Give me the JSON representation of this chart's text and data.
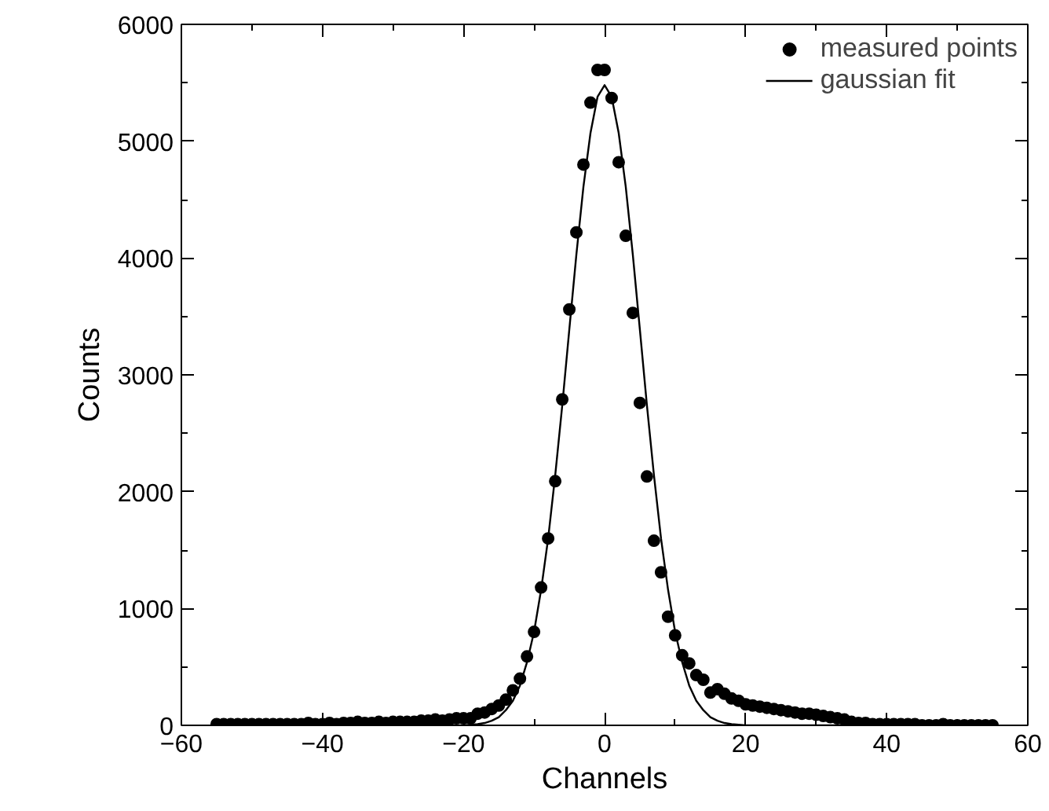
{
  "chart_data": {
    "type": "scatter",
    "xlabel": "Channels",
    "ylabel": "Counts",
    "xlim": [
      -60,
      60
    ],
    "ylim": [
      0,
      6000
    ],
    "xticks": [
      {
        "value": -60,
        "label": "−60"
      },
      {
        "value": -40,
        "label": "−40"
      },
      {
        "value": -20,
        "label": "−20"
      },
      0,
      20,
      40,
      60
    ],
    "yticks": [
      0,
      1000,
      2000,
      3000,
      4000,
      5000,
      6000
    ],
    "grid": false,
    "legend": "top right",
    "series": [
      {
        "name": "measured points",
        "marker": "circle",
        "color": "#000000",
        "x": [
          -55,
          -54,
          -53,
          -52,
          -51,
          -50,
          -49,
          -48,
          -47,
          -46,
          -45,
          -44,
          -43,
          -42,
          -41,
          -40,
          -39,
          -38,
          -37,
          -36,
          -35,
          -34,
          -33,
          -32,
          -31,
          -30,
          -29,
          -28,
          -27,
          -26,
          -25,
          -24,
          -23,
          -22,
          -21,
          -20,
          -19,
          -18,
          -17,
          -16,
          -15,
          -14,
          -13,
          -12,
          -11,
          -10,
          -9,
          -8,
          -7,
          -6,
          -5,
          -4,
          -3,
          -2,
          -1,
          0,
          1,
          2,
          3,
          4,
          5,
          6,
          7,
          8,
          9,
          10,
          11,
          12,
          13,
          14,
          15,
          16,
          17,
          18,
          19,
          20,
          21,
          22,
          23,
          24,
          25,
          26,
          27,
          28,
          29,
          30,
          31,
          32,
          33,
          34,
          35,
          36,
          37,
          38,
          39,
          40,
          41,
          42,
          43,
          44,
          45,
          46,
          47,
          48,
          49,
          50,
          51,
          52,
          53,
          54,
          55
        ],
        "values": [
          10,
          10,
          10,
          10,
          10,
          10,
          10,
          10,
          10,
          10,
          10,
          10,
          10,
          20,
          10,
          10,
          20,
          10,
          20,
          20,
          30,
          20,
          20,
          30,
          20,
          30,
          30,
          30,
          30,
          40,
          40,
          50,
          40,
          50,
          60,
          60,
          60,
          100,
          110,
          140,
          170,
          220,
          300,
          400,
          590,
          800,
          1180,
          1600,
          2090,
          2790,
          3560,
          4220,
          4800,
          5330,
          5610,
          5610,
          5370,
          4820,
          4190,
          3530,
          2760,
          2130,
          1580,
          1310,
          930,
          770,
          600,
          530,
          430,
          390,
          280,
          310,
          270,
          230,
          210,
          180,
          170,
          160,
          150,
          140,
          130,
          120,
          110,
          100,
          100,
          90,
          80,
          70,
          60,
          50,
          30,
          20,
          20,
          10,
          10,
          10,
          10,
          10,
          10,
          10,
          0,
          0,
          0,
          10,
          0,
          0,
          0,
          0,
          0,
          0,
          0
        ]
      },
      {
        "name": "gaussian fit",
        "type": "line",
        "marker": "none",
        "line_style": "solid",
        "color": "#000000",
        "x": [
          -55,
          -20,
          -18,
          -17,
          -16,
          -15,
          -14,
          -13,
          -12,
          -11,
          -10,
          -9,
          -8,
          -7,
          -6,
          -5,
          -4,
          -3,
          -2,
          -1,
          0,
          1,
          2,
          3,
          4,
          5,
          6,
          7,
          8,
          9,
          10,
          11,
          12,
          13,
          14,
          15,
          16,
          17,
          18,
          20,
          55
        ],
        "values": [
          0,
          0,
          10,
          20,
          40,
          70,
          130,
          210,
          340,
          540,
          800,
          1160,
          1600,
          2140,
          2740,
          3390,
          4030,
          4610,
          5070,
          5380,
          5480,
          5380,
          5070,
          4610,
          4030,
          3390,
          2740,
          2140,
          1600,
          1160,
          800,
          540,
          340,
          210,
          130,
          70,
          40,
          20,
          10,
          0,
          0
        ]
      }
    ]
  }
}
